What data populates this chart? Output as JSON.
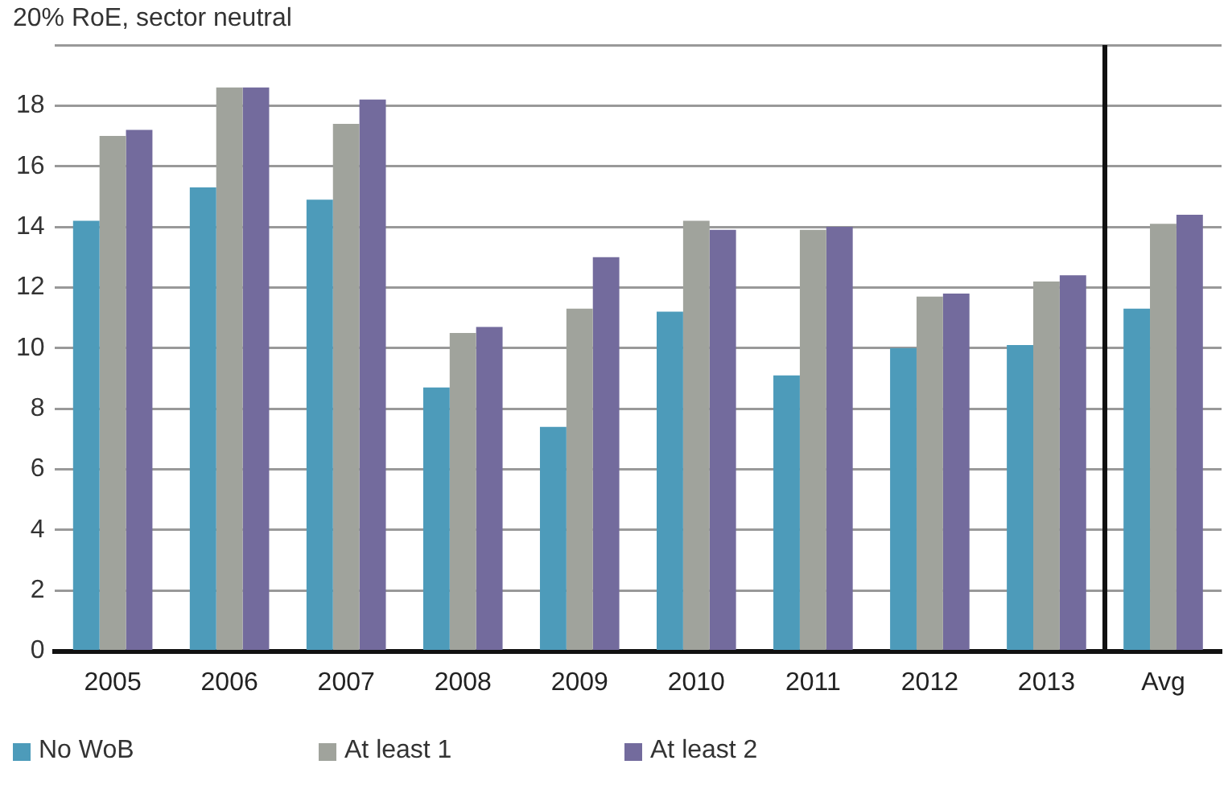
{
  "chart_data": {
    "type": "bar",
    "title": "20% RoE, sector neutral",
    "categories": [
      "2005",
      "2006",
      "2007",
      "2008",
      "2009",
      "2010",
      "2011",
      "2012",
      "2013",
      "Avg"
    ],
    "series": [
      {
        "name": "No WoB",
        "color": "#4d9bba",
        "values": [
          14.2,
          15.3,
          14.9,
          8.7,
          7.4,
          11.2,
          9.1,
          10.0,
          10.1,
          11.3
        ]
      },
      {
        "name": "At least 1",
        "color": "#a0a39c",
        "values": [
          17.0,
          18.6,
          17.4,
          10.5,
          11.3,
          14.2,
          13.9,
          11.7,
          12.2,
          14.1
        ]
      },
      {
        "name": "At least 2",
        "color": "#736b9d",
        "values": [
          17.2,
          18.6,
          18.2,
          10.7,
          13.0,
          13.9,
          14.0,
          11.8,
          12.4,
          14.4
        ]
      }
    ],
    "ylim": [
      0,
      20
    ],
    "yticks": [
      0,
      2,
      4,
      6,
      8,
      10,
      12,
      14,
      16,
      18,
      {
        "value": 20,
        "label": null
      }
    ],
    "grid": "y",
    "legend": "bottom"
  }
}
